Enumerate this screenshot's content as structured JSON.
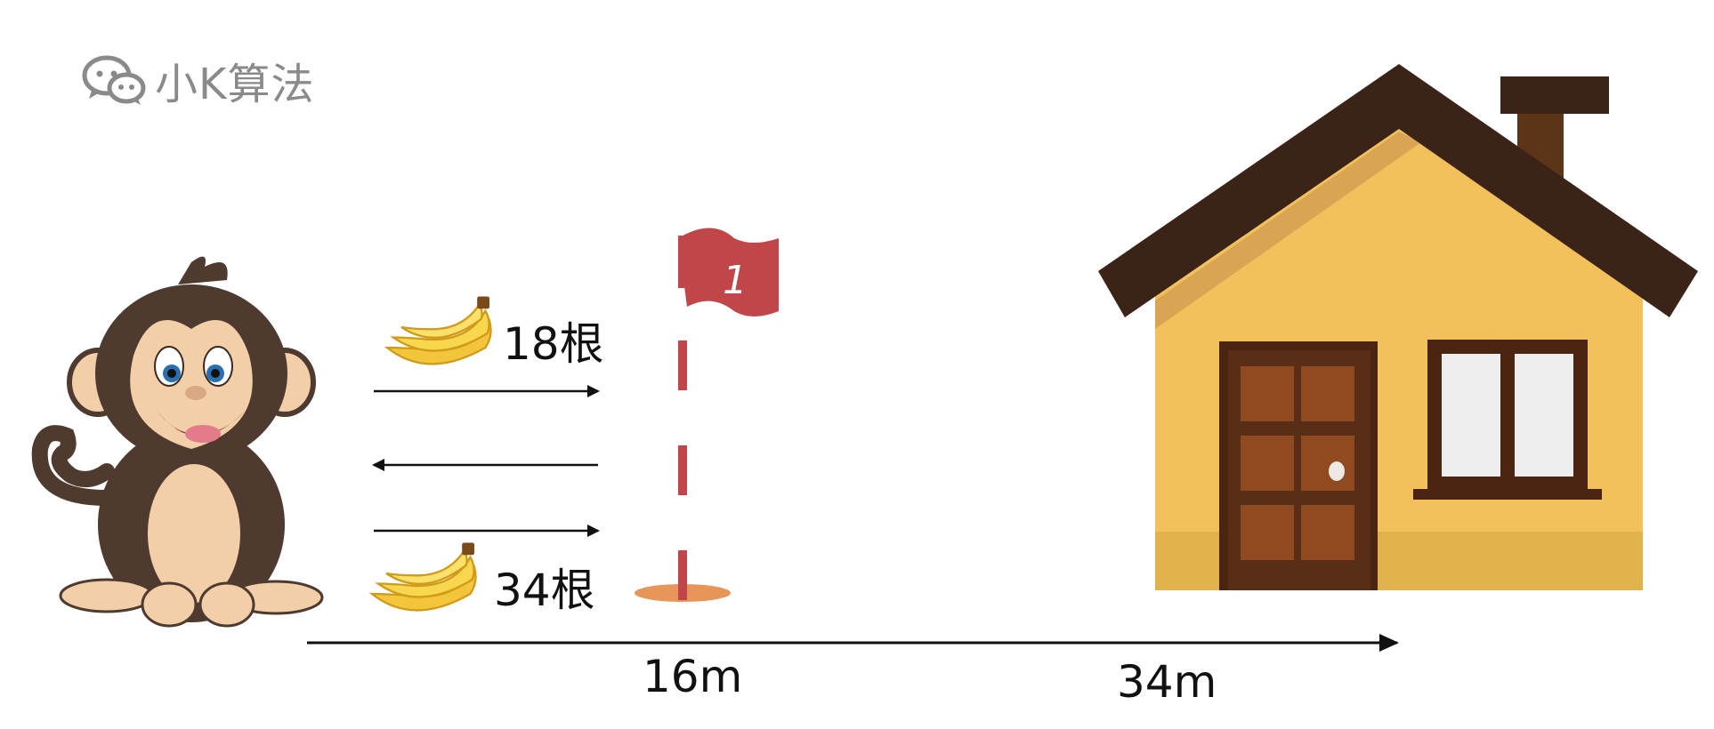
{
  "brand": {
    "name": "小K算法",
    "icon": "wechat-icon"
  },
  "bananas": {
    "top": {
      "count_label": "18根",
      "icon": "banana-bunch-icon"
    },
    "bottom": {
      "count_label": "34根",
      "icon": "banana-bunch-icon"
    }
  },
  "flag": {
    "number": "1",
    "color": "#c0464a"
  },
  "distances": {
    "to_flag": "16m",
    "to_house": "34m"
  },
  "colors": {
    "house_wall": "#f2c15c",
    "roof": "#3b2417",
    "door": "#5a2e16",
    "monkey": "#4f3a30"
  }
}
